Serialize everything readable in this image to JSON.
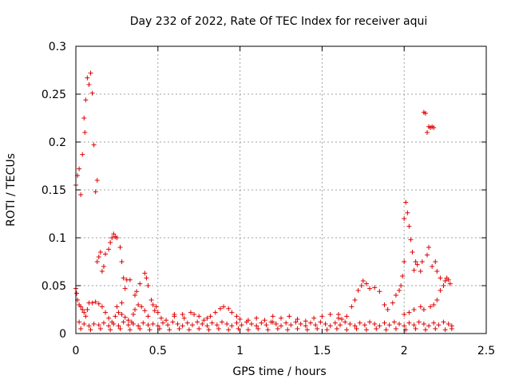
{
  "chart_data": {
    "type": "scatter",
    "title": "Day 232 of 2022, Rate Of TEC Index for receiver aqui",
    "xlabel": "GPS time / hours",
    "ylabel": "ROTI / TECUs",
    "xlim": [
      0,
      2.5
    ],
    "ylim": [
      0,
      0.3
    ],
    "xticks": [
      "0",
      "0.5",
      "1",
      "1.5",
      "2",
      "2.5"
    ],
    "yticks": [
      "0",
      "0.05",
      "0.1",
      "0.15",
      "0.2",
      "0.25",
      "0.3"
    ],
    "grid": true,
    "marker": "plus",
    "color": "#e00000",
    "series": [
      {
        "points": [
          [
            0.0,
            0.155
          ],
          [
            0.01,
            0.165
          ],
          [
            0.02,
            0.172
          ],
          [
            0.03,
            0.145
          ],
          [
            0.04,
            0.187
          ],
          [
            0.05,
            0.225
          ],
          [
            0.055,
            0.21
          ],
          [
            0.06,
            0.244
          ],
          [
            0.07,
            0.267
          ],
          [
            0.08,
            0.26
          ],
          [
            0.09,
            0.272
          ],
          [
            0.1,
            0.251
          ],
          [
            0.11,
            0.197
          ],
          [
            0.12,
            0.148
          ],
          [
            0.13,
            0.16
          ],
          [
            0.13,
            0.075
          ],
          [
            0.14,
            0.08
          ],
          [
            0.15,
            0.085
          ],
          [
            0.16,
            0.065
          ],
          [
            0.17,
            0.07
          ],
          [
            0.18,
            0.083
          ],
          [
            0.2,
            0.088
          ],
          [
            0.21,
            0.095
          ],
          [
            0.22,
            0.1
          ],
          [
            0.23,
            0.104
          ],
          [
            0.24,
            0.101
          ],
          [
            0.25,
            0.1
          ],
          [
            0.27,
            0.09
          ],
          [
            0.28,
            0.075
          ],
          [
            0.29,
            0.058
          ],
          [
            0.31,
            0.056
          ],
          [
            0.33,
            0.056
          ],
          [
            0.3,
            0.047
          ],
          [
            0.36,
            0.04
          ],
          [
            0.37,
            0.044
          ],
          [
            0.39,
            0.052
          ],
          [
            0.42,
            0.063
          ],
          [
            0.43,
            0.058
          ],
          [
            0.44,
            0.05
          ],
          [
            0.46,
            0.035
          ],
          [
            0.47,
            0.03
          ],
          [
            0.49,
            0.028
          ],
          [
            0.5,
            0.022
          ],
          [
            0.0,
            0.047
          ],
          [
            0.005,
            0.042
          ],
          [
            0.01,
            0.035
          ],
          [
            0.02,
            0.03
          ],
          [
            0.03,
            0.028
          ],
          [
            0.04,
            0.025
          ],
          [
            0.05,
            0.022
          ],
          [
            0.06,
            0.018
          ],
          [
            0.07,
            0.025
          ],
          [
            0.08,
            0.032
          ],
          [
            0.1,
            0.032
          ],
          [
            0.12,
            0.033
          ],
          [
            0.14,
            0.031
          ],
          [
            0.16,
            0.028
          ],
          [
            0.18,
            0.022
          ],
          [
            0.2,
            0.016
          ],
          [
            0.22,
            0.012
          ],
          [
            0.24,
            0.018
          ],
          [
            0.26,
            0.022
          ],
          [
            0.28,
            0.02
          ],
          [
            0.3,
            0.017
          ],
          [
            0.32,
            0.014
          ],
          [
            0.34,
            0.012
          ],
          [
            0.36,
            0.025
          ],
          [
            0.38,
            0.03
          ],
          [
            0.4,
            0.028
          ],
          [
            0.42,
            0.024
          ],
          [
            0.52,
            0.016
          ],
          [
            0.55,
            0.014
          ],
          [
            0.6,
            0.018
          ],
          [
            0.65,
            0.02
          ],
          [
            0.7,
            0.022
          ],
          [
            0.72,
            0.02
          ],
          [
            0.75,
            0.018
          ],
          [
            0.8,
            0.016
          ],
          [
            0.82,
            0.018
          ],
          [
            0.85,
            0.022
          ],
          [
            0.88,
            0.026
          ],
          [
            0.9,
            0.028
          ],
          [
            0.93,
            0.026
          ],
          [
            0.95,
            0.022
          ],
          [
            0.98,
            0.018
          ],
          [
            1.0,
            0.015
          ],
          [
            1.05,
            0.014
          ],
          [
            1.1,
            0.016
          ],
          [
            1.15,
            0.014
          ],
          [
            1.2,
            0.012
          ],
          [
            1.25,
            0.016
          ],
          [
            1.3,
            0.018
          ],
          [
            1.35,
            0.015
          ],
          [
            1.4,
            0.013
          ],
          [
            1.45,
            0.016
          ],
          [
            1.5,
            0.018
          ],
          [
            1.55,
            0.02
          ],
          [
            1.6,
            0.016
          ],
          [
            1.62,
            0.015
          ],
          [
            1.65,
            0.018
          ],
          [
            1.68,
            0.028
          ],
          [
            1.7,
            0.035
          ],
          [
            1.72,
            0.045
          ],
          [
            1.74,
            0.05
          ],
          [
            1.75,
            0.055
          ],
          [
            1.77,
            0.052
          ],
          [
            1.79,
            0.047
          ],
          [
            1.82,
            0.048
          ],
          [
            1.85,
            0.044
          ],
          [
            1.88,
            0.03
          ],
          [
            1.9,
            0.025
          ],
          [
            1.93,
            0.032
          ],
          [
            1.95,
            0.04
          ],
          [
            1.97,
            0.045
          ],
          [
            1.98,
            0.05
          ],
          [
            1.99,
            0.06
          ],
          [
            2.0,
            0.075
          ],
          [
            2.0,
            0.12
          ],
          [
            2.01,
            0.137
          ],
          [
            2.02,
            0.126
          ],
          [
            2.03,
            0.112
          ],
          [
            2.04,
            0.098
          ],
          [
            2.05,
            0.085
          ],
          [
            2.06,
            0.066
          ],
          [
            2.07,
            0.075
          ],
          [
            2.08,
            0.072
          ],
          [
            2.1,
            0.065
          ],
          [
            2.11,
            0.075
          ],
          [
            2.12,
            0.231
          ],
          [
            2.13,
            0.23
          ],
          [
            2.14,
            0.21
          ],
          [
            2.15,
            0.216
          ],
          [
            2.16,
            0.215
          ],
          [
            2.17,
            0.216
          ],
          [
            2.18,
            0.215
          ],
          [
            2.14,
            0.082
          ],
          [
            2.15,
            0.09
          ],
          [
            2.17,
            0.07
          ],
          [
            2.19,
            0.075
          ],
          [
            2.2,
            0.065
          ],
          [
            2.22,
            0.058
          ],
          [
            2.24,
            0.05
          ],
          [
            2.25,
            0.055
          ],
          [
            2.26,
            0.058
          ],
          [
            2.27,
            0.056
          ],
          [
            2.28,
            0.052
          ],
          [
            2.22,
            0.045
          ],
          [
            2.2,
            0.035
          ],
          [
            2.18,
            0.03
          ],
          [
            2.16,
            0.028
          ],
          [
            2.12,
            0.025
          ],
          [
            2.1,
            0.028
          ],
          [
            2.06,
            0.025
          ],
          [
            2.03,
            0.022
          ],
          [
            2.0,
            0.02
          ],
          [
            0.02,
            0.012
          ],
          [
            0.05,
            0.01
          ],
          [
            0.08,
            0.008
          ],
          [
            0.11,
            0.01
          ],
          [
            0.14,
            0.009
          ],
          [
            0.17,
            0.011
          ],
          [
            0.2,
            0.008
          ],
          [
            0.23,
            0.01
          ],
          [
            0.26,
            0.008
          ],
          [
            0.29,
            0.012
          ],
          [
            0.32,
            0.009
          ],
          [
            0.35,
            0.01
          ],
          [
            0.38,
            0.008
          ],
          [
            0.41,
            0.011
          ],
          [
            0.44,
            0.009
          ],
          [
            0.47,
            0.01
          ],
          [
            0.5,
            0.008
          ],
          [
            0.53,
            0.011
          ],
          [
            0.56,
            0.009
          ],
          [
            0.59,
            0.012
          ],
          [
            0.62,
            0.01
          ],
          [
            0.65,
            0.008
          ],
          [
            0.68,
            0.011
          ],
          [
            0.71,
            0.009
          ],
          [
            0.74,
            0.012
          ],
          [
            0.77,
            0.01
          ],
          [
            0.8,
            0.008
          ],
          [
            0.83,
            0.011
          ],
          [
            0.86,
            0.009
          ],
          [
            0.89,
            0.012
          ],
          [
            0.92,
            0.01
          ],
          [
            0.95,
            0.008
          ],
          [
            0.98,
            0.011
          ],
          [
            1.01,
            0.009
          ],
          [
            1.04,
            0.012
          ],
          [
            1.07,
            0.01
          ],
          [
            1.1,
            0.008
          ],
          [
            1.13,
            0.011
          ],
          [
            1.16,
            0.009
          ],
          [
            1.19,
            0.012
          ],
          [
            1.22,
            0.01
          ],
          [
            1.25,
            0.008
          ],
          [
            1.28,
            0.011
          ],
          [
            1.31,
            0.009
          ],
          [
            1.34,
            0.012
          ],
          [
            1.37,
            0.01
          ],
          [
            1.4,
            0.008
          ],
          [
            1.43,
            0.011
          ],
          [
            1.46,
            0.009
          ],
          [
            1.49,
            0.012
          ],
          [
            1.52,
            0.01
          ],
          [
            1.55,
            0.008
          ],
          [
            1.58,
            0.011
          ],
          [
            1.61,
            0.009
          ],
          [
            1.64,
            0.012
          ],
          [
            1.67,
            0.01
          ],
          [
            1.7,
            0.008
          ],
          [
            1.73,
            0.011
          ],
          [
            1.76,
            0.009
          ],
          [
            1.79,
            0.012
          ],
          [
            1.82,
            0.01
          ],
          [
            1.85,
            0.008
          ],
          [
            1.88,
            0.011
          ],
          [
            1.91,
            0.009
          ],
          [
            1.94,
            0.012
          ],
          [
            1.97,
            0.01
          ],
          [
            2.0,
            0.008
          ],
          [
            2.03,
            0.011
          ],
          [
            2.06,
            0.009
          ],
          [
            2.09,
            0.012
          ],
          [
            2.12,
            0.01
          ],
          [
            2.15,
            0.008
          ],
          [
            2.18,
            0.011
          ],
          [
            2.21,
            0.009
          ],
          [
            2.24,
            0.012
          ],
          [
            2.27,
            0.01
          ],
          [
            2.29,
            0.008
          ],
          [
            0.03,
            0.005
          ],
          [
            0.09,
            0.004
          ],
          [
            0.15,
            0.005
          ],
          [
            0.21,
            0.004
          ],
          [
            0.27,
            0.005
          ],
          [
            0.33,
            0.004
          ],
          [
            0.39,
            0.005
          ],
          [
            0.45,
            0.004
          ],
          [
            0.51,
            0.005
          ],
          [
            0.57,
            0.004
          ],
          [
            0.63,
            0.005
          ],
          [
            0.69,
            0.004
          ],
          [
            0.75,
            0.005
          ],
          [
            0.81,
            0.004
          ],
          [
            0.87,
            0.005
          ],
          [
            0.93,
            0.004
          ],
          [
            0.99,
            0.005
          ],
          [
            1.05,
            0.004
          ],
          [
            1.11,
            0.005
          ],
          [
            1.17,
            0.004
          ],
          [
            1.23,
            0.005
          ],
          [
            1.29,
            0.004
          ],
          [
            1.35,
            0.005
          ],
          [
            1.41,
            0.004
          ],
          [
            1.47,
            0.005
          ],
          [
            1.53,
            0.004
          ],
          [
            1.59,
            0.005
          ],
          [
            1.65,
            0.004
          ],
          [
            1.71,
            0.005
          ],
          [
            1.77,
            0.004
          ],
          [
            1.83,
            0.005
          ],
          [
            1.89,
            0.004
          ],
          [
            1.95,
            0.005
          ],
          [
            2.01,
            0.004
          ],
          [
            2.07,
            0.005
          ],
          [
            2.13,
            0.004
          ],
          [
            2.19,
            0.005
          ],
          [
            2.25,
            0.004
          ],
          [
            2.29,
            0.005
          ],
          [
            0.6,
            0.02
          ],
          [
            0.66,
            0.016
          ],
          [
            0.78,
            0.014
          ],
          [
            1.2,
            0.018
          ],
          [
            1.6,
            0.02
          ],
          [
            0.35,
            0.02
          ],
          [
            0.44,
            0.018
          ],
          [
            0.48,
            0.024
          ],
          [
            0.25,
            0.028
          ],
          [
            0.28,
            0.032
          ]
        ]
      }
    ]
  }
}
